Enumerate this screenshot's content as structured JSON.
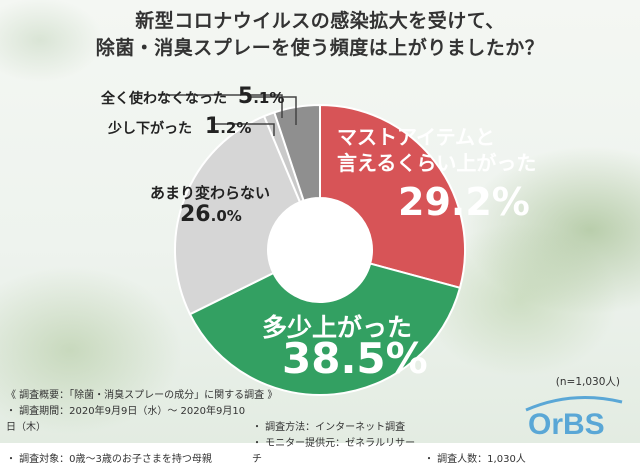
{
  "title_line1": "新型コロナウイルスの感染拡大を受けて、",
  "title_line2": "除菌・消臭スプレーを使う頻度は上がりましたか？",
  "chart_data": {
    "type": "pie",
    "donut": true,
    "categories": [
      "マストアイテムと言えるくらい上がった",
      "多少上がった",
      "あまり変わらない",
      "少し下がった",
      "全く使わなくなった"
    ],
    "values": [
      29.2,
      38.5,
      26.0,
      1.2,
      5.1
    ],
    "colors": [
      "#d75457",
      "#33a062",
      "#d6d6d6",
      "#c9c9c9",
      "#8f8f8f"
    ],
    "labels": {
      "s1_line1": "マストアイテムと",
      "s1_line2": "言えるくらい上がった",
      "s1_value": "29.2%",
      "s2_label": "多少上がった",
      "s2_value": "38.5%",
      "s3_label": "あまり変わらない",
      "s3_value_int": "26",
      "s3_value_dec": ".0%",
      "s4_label": "少し下がった",
      "s4_value_int": "1",
      "s4_value_dec": ".2%",
      "s5_label": "全く使わなくなった",
      "s5_value_int": "5",
      "s5_value_dec": ".1%"
    }
  },
  "sample_size": "(n=1,030人)",
  "survey": {
    "overview": "《 調査概要：「除菌・消臭スプレーの成分」に関する調査 》",
    "period": "・ 調査期間：2020年9月9日（水）～ 2020年9月10日（木）",
    "method": "・ 調査方法：インターネット調査",
    "target": "・ 調査対象：0歳～3歳のお子さまを持つ母親",
    "monitor": "・ モニター提供元：ゼネラルリサーチ",
    "count": "・ 調査人数：1,030人"
  },
  "logo": {
    "text": "OrBS",
    "color": "#5aa7d6"
  }
}
